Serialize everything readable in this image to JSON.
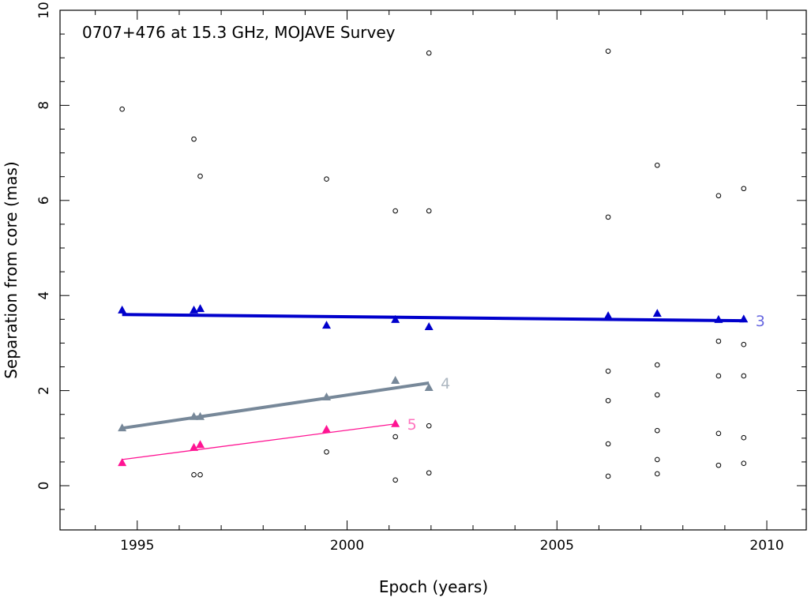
{
  "chart_data": {
    "type": "scatter",
    "title": "0707+476 at 15.3 GHz, MOJAVE Survey",
    "xlabel": "Epoch (years)",
    "ylabel": "Separation from core (mas)",
    "xlim": [
      1993.16,
      2010.94
    ],
    "ylim": [
      -0.93,
      10
    ],
    "xticks": [
      1995,
      2000,
      2005,
      2010
    ],
    "yticks": [
      0,
      2,
      4,
      6,
      8,
      10
    ],
    "grid": false,
    "series": [
      {
        "name": "3",
        "color": "#0000cc",
        "marker": "triangle",
        "x": [
          1994.64,
          1996.35,
          1996.5,
          1999.51,
          2001.15,
          2001.95,
          2006.22,
          2007.39,
          2008.85,
          2009.45
        ],
        "y": [
          3.69,
          3.69,
          3.72,
          3.37,
          3.49,
          3.34,
          3.57,
          3.62,
          3.49,
          3.5
        ],
        "fit": {
          "x": [
            1994.64,
            2009.45
          ],
          "y": [
            3.6,
            3.47
          ]
        }
      },
      {
        "name": "4",
        "color": "#778899",
        "marker": "triangle",
        "x": [
          1994.64,
          1996.35,
          1996.5,
          1999.51,
          2001.15,
          2001.95
        ],
        "y": [
          1.21,
          1.45,
          1.45,
          1.86,
          2.21,
          2.06
        ],
        "fit": {
          "x": [
            1994.64,
            2001.95
          ],
          "y": [
            1.21,
            2.16
          ]
        }
      },
      {
        "name": "5",
        "color": "#ff1493",
        "marker": "triangle",
        "x": [
          1994.64,
          1996.35,
          1996.5,
          1999.51,
          2001.15
        ],
        "y": [
          0.48,
          0.8,
          0.86,
          1.18,
          1.3
        ],
        "fit": {
          "x": [
            1994.64,
            2001.15
          ],
          "y": [
            0.55,
            1.3
          ]
        }
      },
      {
        "color": "#000000",
        "marker": "open-circle",
        "x": [
          1994.64,
          1996.35,
          1996.35,
          1996.5,
          1996.5,
          1999.51,
          1999.51,
          2001.15,
          2001.15,
          2001.15,
          2001.95,
          2001.95,
          2001.95,
          2001.95,
          2006.22,
          2006.22,
          2006.22,
          2006.22,
          2006.22,
          2006.22,
          2007.39,
          2007.39,
          2007.39,
          2007.39,
          2007.39,
          2007.39,
          2008.85,
          2008.85,
          2008.85,
          2008.85,
          2008.85,
          2009.45,
          2009.45,
          2009.45,
          2009.45,
          2009.45
        ],
        "y": [
          7.92,
          7.29,
          0.23,
          6.51,
          0.23,
          6.45,
          0.71,
          5.78,
          1.03,
          0.12,
          9.1,
          5.78,
          1.26,
          0.27,
          9.14,
          5.65,
          2.41,
          1.79,
          0.88,
          0.2,
          6.74,
          2.54,
          1.91,
          1.16,
          0.55,
          0.25,
          6.1,
          3.04,
          2.31,
          1.1,
          0.43,
          6.25,
          2.97,
          2.31,
          1.01,
          0.47
        ]
      }
    ]
  }
}
